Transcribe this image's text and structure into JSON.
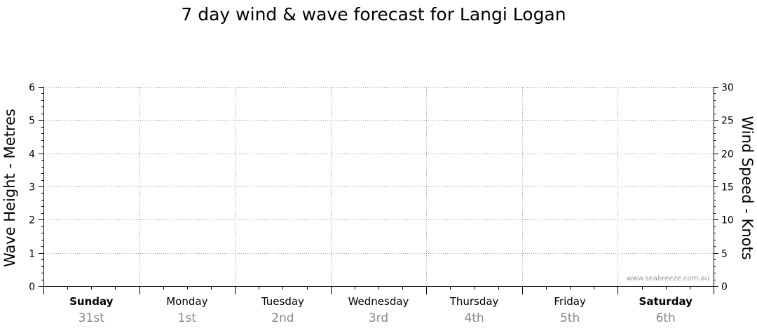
{
  "chart_data": {
    "type": "line",
    "title": "7 day wind & wave forecast for Langi Logan",
    "ylabel_left": "Wave Height - Metres",
    "ylabel_right": "Wind Speed - Knots",
    "ylim_left": [
      0,
      6
    ],
    "ylim_right": [
      0,
      30
    ],
    "yticks_left": [
      "0",
      "1",
      "2",
      "3",
      "4",
      "5",
      "6"
    ],
    "yticks_right": [
      "0",
      "5",
      "10",
      "15",
      "20",
      "25",
      "30"
    ],
    "days": [
      {
        "name": "Sunday",
        "date": "31st",
        "bold": true
      },
      {
        "name": "Monday",
        "date": "1st",
        "bold": false
      },
      {
        "name": "Tuesday",
        "date": "2nd",
        "bold": false
      },
      {
        "name": "Wednesday",
        "date": "3rd",
        "bold": false
      },
      {
        "name": "Thursday",
        "date": "4th",
        "bold": false
      },
      {
        "name": "Friday",
        "date": "5th",
        "bold": false
      },
      {
        "name": "Saturday",
        "date": "6th",
        "bold": true
      }
    ],
    "series": [],
    "grid": true,
    "watermark": "www.seabreeze.com.au"
  }
}
